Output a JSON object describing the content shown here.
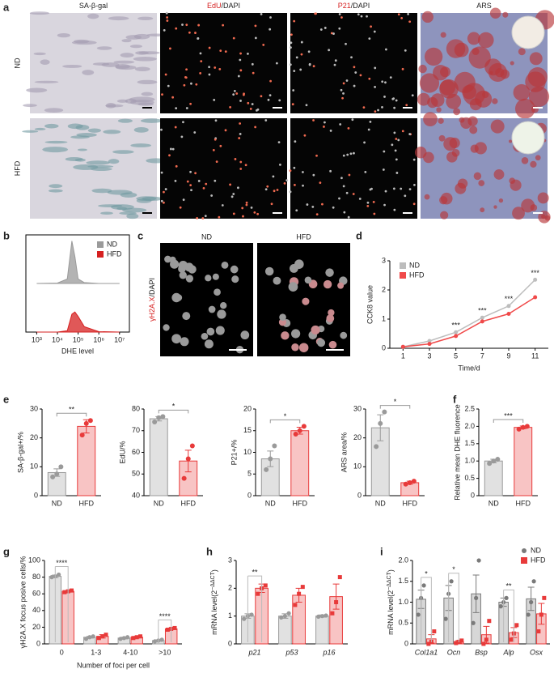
{
  "panel_labels": [
    "a",
    "b",
    "c",
    "d",
    "e",
    "f",
    "g",
    "h",
    "i"
  ],
  "panel_a": {
    "columns": [
      {
        "text": "SA-β-gal"
      },
      {
        "marker": "EdU",
        "text": "/DAPI"
      },
      {
        "marker": "P21",
        "text": "/DAPI"
      },
      {
        "text": "ARS"
      }
    ],
    "rows": [
      "ND",
      "HFD"
    ]
  },
  "panel_c": {
    "columns": [
      "ND",
      "HFD"
    ],
    "ylabel": {
      "marker": "γH2A.X",
      "text": "/DAPI"
    }
  },
  "chart_data": [
    {
      "type": "density",
      "xlabel": "DHE level",
      "xscale": "log",
      "xlim": [
        300,
        30000000
      ],
      "xticks": [
        {
          "value": 1000,
          "label": "10³"
        },
        {
          "value": 10000,
          "label": "10⁴"
        },
        {
          "value": 100000,
          "label": "10⁵"
        },
        {
          "value": 1000000,
          "label": "10⁶"
        },
        {
          "value": 10000000,
          "label": "10⁷"
        }
      ],
      "ylim": [
        0,
        100
      ],
      "legend": "upper right",
      "x": [
        1000,
        10000,
        30000,
        50000,
        70000,
        100000,
        200000,
        1000000,
        10000000
      ],
      "series": [
        {
          "name": "ND",
          "color": "#9a9a9a",
          "values": [
            0,
            1,
            10,
            95,
            60,
            10,
            2,
            0,
            0
          ]
        },
        {
          "name": "HFD",
          "color": "#d62020",
          "values": [
            0,
            0,
            3,
            40,
            45,
            35,
            12,
            1,
            0
          ]
        }
      ]
    },
    {
      "type": "line",
      "xlabel": "Time/d",
      "ylabel": "CCK8 value",
      "x": [
        1,
        3,
        5,
        7,
        9,
        11
      ],
      "xlim": [
        0,
        12
      ],
      "xticks": [
        1,
        3,
        5,
        7,
        9,
        11
      ],
      "ylim": [
        0,
        3
      ],
      "yticks": [
        0,
        1,
        2,
        3
      ],
      "legend": "upper left",
      "series": [
        {
          "name": "ND",
          "color": "#bdbdbd",
          "values": [
            0.05,
            0.25,
            0.55,
            1.05,
            1.45,
            2.35
          ]
        },
        {
          "name": "HFD",
          "color": "#f04a4a",
          "values": [
            0.05,
            0.15,
            0.42,
            0.92,
            1.18,
            1.75
          ]
        }
      ],
      "annotations": [
        {
          "x": 5,
          "text": "***"
        },
        {
          "x": 7,
          "text": "***"
        },
        {
          "x": 9,
          "text": "***"
        },
        {
          "x": 11,
          "text": "***"
        }
      ]
    },
    {
      "type": "bar",
      "ylabel": "SA-β-gal+/%",
      "categories": [
        "ND",
        "HFD"
      ],
      "values": [
        8,
        24
      ],
      "errors": [
        1.3,
        2.3
      ],
      "points": [
        [
          6.5,
          7.5,
          10
        ],
        [
          21,
          25,
          26
        ]
      ],
      "colors": [
        "#9a9a9a",
        "#e83a3a"
      ],
      "ylim": [
        0,
        30
      ],
      "yticks": [
        0,
        10,
        20,
        30
      ],
      "annotation": "**"
    },
    {
      "type": "bar",
      "ylabel": "EdU/%",
      "categories": [
        "ND",
        "HFD"
      ],
      "values": [
        75.5,
        56
      ],
      "errors": [
        1,
        5
      ],
      "points": [
        [
          74,
          76,
          76.5
        ],
        [
          48,
          57,
          63
        ]
      ],
      "colors": [
        "#9a9a9a",
        "#e83a3a"
      ],
      "ylim": [
        40,
        80
      ],
      "yticks": [
        40,
        50,
        60,
        70,
        80
      ],
      "annotation": "*"
    },
    {
      "type": "bar",
      "ylabel": "P21+/%",
      "categories": [
        "ND",
        "HFD"
      ],
      "values": [
        8.5,
        15
      ],
      "errors": [
        1.8,
        0.8
      ],
      "points": [
        [
          6,
          8.5,
          11.5
        ],
        [
          14.2,
          15,
          16
        ]
      ],
      "colors": [
        "#9a9a9a",
        "#e83a3a"
      ],
      "ylim": [
        0,
        20
      ],
      "yticks": [
        0,
        5,
        10,
        15,
        20
      ],
      "annotation": "*"
    },
    {
      "type": "bar",
      "ylabel": "ARS area/%",
      "categories": [
        "ND",
        "HFD"
      ],
      "values": [
        23.5,
        4.5
      ],
      "errors": [
        4.5,
        0.5
      ],
      "points": [
        [
          17,
          25,
          29
        ],
        [
          4,
          4.5,
          5
        ]
      ],
      "colors": [
        "#9a9a9a",
        "#e83a3a"
      ],
      "ylim": [
        0,
        30
      ],
      "yticks": [
        0,
        10,
        20,
        30
      ],
      "annotation": "*"
    },
    {
      "type": "bar",
      "ylabel": "Relative mean DHE fluorence",
      "categories": [
        "ND",
        "HFD"
      ],
      "values": [
        1,
        1.97
      ],
      "errors": [
        0.05,
        0.04
      ],
      "points": [
        [
          0.93,
          1,
          1.05
        ],
        [
          1.92,
          1.97,
          2
        ]
      ],
      "colors": [
        "#9a9a9a",
        "#e83a3a"
      ],
      "ylim": [
        0,
        2.5
      ],
      "yticks": [
        0,
        0.5,
        {
          "value": 1,
          "label": "1.0"
        },
        1.5,
        {
          "value": 2,
          "label": "2.0"
        },
        2.5
      ],
      "annotation": "***"
    },
    {
      "type": "grouped_bar",
      "xlabel": "Number of foci per cell",
      "ylabel": "γH2A.X focus posive cells/%",
      "categories": [
        "0",
        "1-3",
        "4-10",
        ">10"
      ],
      "ylim": [
        0,
        100
      ],
      "yticks": [
        0,
        20,
        40,
        60,
        80,
        100
      ],
      "series": [
        {
          "name": "ND",
          "color": "#9a9a9a",
          "values": [
            81,
            8,
            7,
            4
          ],
          "errors": [
            1.5,
            1,
            1,
            0.8
          ],
          "points": [
            [
              80,
              81,
              83
            ],
            [
              6,
              8,
              9
            ],
            [
              6,
              7,
              8
            ],
            [
              3,
              4,
              5
            ]
          ]
        },
        {
          "name": "HFD",
          "color": "#e83a3a",
          "values": [
            63,
            9,
            8,
            18
          ],
          "errors": [
            1,
            2,
            1,
            1
          ],
          "points": [
            [
              62,
              63,
              64
            ],
            [
              7,
              9,
              11
            ],
            [
              7,
              8,
              9
            ],
            [
              17,
              18,
              19
            ]
          ]
        }
      ],
      "annotations": [
        {
          "category": 0,
          "text": "****"
        },
        {
          "category": 3,
          "text": "****"
        }
      ]
    },
    {
      "type": "grouped_bar",
      "ylabel": {
        "text": "mRNA level(2",
        "sup": "−ΔΔCT",
        "end": ")"
      },
      "italic": true,
      "categories": [
        "p21",
        "p53",
        "p16"
      ],
      "ylim": [
        0,
        3
      ],
      "yticks": [
        0,
        1,
        2,
        3
      ],
      "series": [
        {
          "name": "ND",
          "color": "#9a9a9a",
          "values": [
            1,
            1,
            1
          ],
          "errors": [
            0.08,
            0.08,
            0.04
          ],
          "points": [
            [
              0.9,
              1,
              1.05
            ],
            [
              0.95,
              1,
              1.1
            ],
            [
              0.98,
              1,
              1.02
            ]
          ]
        },
        {
          "name": "HFD",
          "color": "#e83a3a",
          "values": [
            2,
            1.75,
            1.7
          ],
          "errors": [
            0.15,
            0.25,
            0.45
          ],
          "points": [
            [
              1.8,
              2,
              2.1
            ],
            [
              1.4,
              1.8,
              2.05
            ],
            [
              1.1,
              1.5,
              2.4
            ]
          ]
        }
      ],
      "annotations": [
        {
          "category": 0,
          "text": "**"
        }
      ]
    },
    {
      "type": "grouped_bar",
      "ylabel": {
        "text": "mRNA level(2",
        "sup": "−ΔΔCT",
        "end": ")"
      },
      "italic": true,
      "legend": "upper right",
      "categories": [
        "Col1a1",
        "Ocn",
        "Bsp",
        "Alp",
        "Osx"
      ],
      "ylim": [
        0,
        2
      ],
      "yticks": [
        0,
        0.5,
        {
          "value": 1,
          "label": "1.0"
        },
        1.5,
        {
          "value": 2,
          "label": "2.0"
        }
      ],
      "series": [
        {
          "name": "ND",
          "color": "#7a7a7a",
          "values": [
            1.07,
            1.1,
            1.2,
            1,
            1.08
          ],
          "errors": [
            0.22,
            0.3,
            0.45,
            0.1,
            0.28
          ],
          "points": [
            [
              0.7,
              1.1,
              1.4
            ],
            [
              0.6,
              1.2,
              1.5
            ],
            [
              0.5,
              1.1,
              2
            ],
            [
              0.9,
              1,
              1.1
            ],
            [
              0.7,
              1,
              1.5
            ]
          ]
        },
        {
          "name": "HFD",
          "color": "#e83a3a",
          "values": [
            0.12,
            0.05,
            0.22,
            0.27,
            0.72
          ],
          "errors": [
            0.1,
            0.03,
            0.2,
            0.12,
            0.25
          ],
          "points": [
            [
              0,
              0.05,
              0.3
            ],
            [
              0.02,
              0.05,
              0.08
            ],
            [
              0,
              0.1,
              0.55
            ],
            [
              0.1,
              0.25,
              0.45
            ],
            [
              0.3,
              0.7,
              1.1
            ]
          ]
        }
      ],
      "annotations": [
        {
          "category": 0,
          "text": "*"
        },
        {
          "category": 1,
          "text": "*"
        },
        {
          "category": 3,
          "text": "**"
        }
      ]
    }
  ]
}
